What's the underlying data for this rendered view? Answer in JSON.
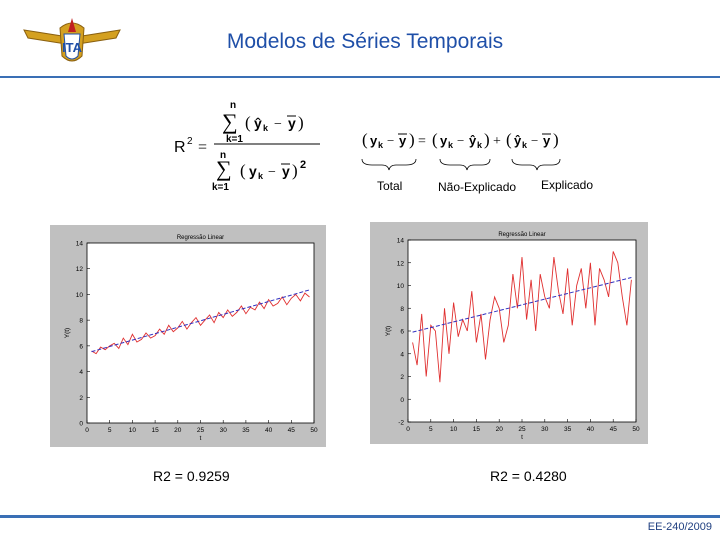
{
  "slide": {
    "title": "Modelos de Séries Temporais",
    "footer": "EE-240/2009"
  },
  "formula": {
    "brace_labels": [
      "Total",
      "Não-Explicado",
      "Explicado"
    ]
  },
  "r2_labels": {
    "left": "R2 = 0.9259",
    "right": "R2 = 0.4280"
  },
  "colors": {
    "title": "#1f4fa8",
    "rule": "#3a6fb5",
    "series": "#e03030",
    "fit": "#3030c0"
  },
  "chart_data": [
    {
      "type": "line",
      "title": "Regressão Linear",
      "xlabel": "t",
      "ylabel": "Y(t)",
      "xlim": [
        0,
        50
      ],
      "ylim": [
        0,
        14
      ],
      "xticks": [
        0,
        5,
        10,
        15,
        20,
        25,
        30,
        35,
        40,
        45,
        50
      ],
      "yticks": [
        0,
        2,
        4,
        6,
        8,
        10,
        12,
        14
      ],
      "x": [
        1,
        2,
        3,
        4,
        5,
        6,
        7,
        8,
        9,
        10,
        11,
        12,
        13,
        14,
        15,
        16,
        17,
        18,
        19,
        20,
        21,
        22,
        23,
        24,
        25,
        26,
        27,
        28,
        29,
        30,
        31,
        32,
        33,
        34,
        35,
        36,
        37,
        38,
        39,
        40,
        41,
        42,
        43,
        44,
        45,
        46,
        47,
        48,
        49
      ],
      "series": [
        {
          "values": [
            5.6,
            5.4,
            5.9,
            5.7,
            6.0,
            6.2,
            5.8,
            6.6,
            6.1,
            6.9,
            6.3,
            6.5,
            7.0,
            6.6,
            6.8,
            7.3,
            6.9,
            7.6,
            7.1,
            7.4,
            7.9,
            7.3,
            7.8,
            8.2,
            7.6,
            8.0,
            8.4,
            7.8,
            8.6,
            8.2,
            8.8,
            8.3,
            8.6,
            9.1,
            8.5,
            9.0,
            8.8,
            9.4,
            8.9,
            9.6,
            9.1,
            9.3,
            9.8,
            9.2,
            9.7,
            10.0,
            9.5,
            10.1,
            9.8
          ]
        },
        {
          "values": [
            5.55,
            5.65,
            5.75,
            5.85,
            5.95,
            6.05,
            6.15,
            6.25,
            6.35,
            6.45,
            6.55,
            6.65,
            6.75,
            6.85,
            6.95,
            7.05,
            7.15,
            7.25,
            7.35,
            7.45,
            7.55,
            7.65,
            7.75,
            7.85,
            7.95,
            8.05,
            8.15,
            8.25,
            8.35,
            8.45,
            8.55,
            8.65,
            8.75,
            8.85,
            8.95,
            9.05,
            9.15,
            9.25,
            9.35,
            9.45,
            9.55,
            9.65,
            9.75,
            9.85,
            9.95,
            10.05,
            10.15,
            10.25,
            10.35
          ]
        }
      ]
    },
    {
      "type": "line",
      "title": "Regressão Linear",
      "xlabel": "t",
      "ylabel": "Y(t)",
      "xlim": [
        0,
        50
      ],
      "ylim": [
        -2,
        14
      ],
      "xticks": [
        0,
        5,
        10,
        15,
        20,
        25,
        30,
        35,
        40,
        45,
        50
      ],
      "yticks": [
        -2,
        0,
        2,
        4,
        6,
        8,
        10,
        12,
        14
      ],
      "x": [
        1,
        2,
        3,
        4,
        5,
        6,
        7,
        8,
        9,
        10,
        11,
        12,
        13,
        14,
        15,
        16,
        17,
        18,
        19,
        20,
        21,
        22,
        23,
        24,
        25,
        26,
        27,
        28,
        29,
        30,
        31,
        32,
        33,
        34,
        35,
        36,
        37,
        38,
        39,
        40,
        41,
        42,
        43,
        44,
        45,
        46,
        47,
        48,
        49
      ],
      "series": [
        {
          "values": [
            5.0,
            3.0,
            7.5,
            2.0,
            6.5,
            6.0,
            1.5,
            8.0,
            4.0,
            8.5,
            5.5,
            7.0,
            6.0,
            9.5,
            5.0,
            7.5,
            3.5,
            7.0,
            9.0,
            8.0,
            5.0,
            6.5,
            11.0,
            8.0,
            12.5,
            7.0,
            10.5,
            6.0,
            11.0,
            9.0,
            8.0,
            12.5,
            9.5,
            7.5,
            11.5,
            6.5,
            10.0,
            11.5,
            8.0,
            12.0,
            6.5,
            11.5,
            10.5,
            9.0,
            13.0,
            12.0,
            9.0,
            6.5,
            10.5
          ]
        },
        {
          "values": [
            5.9,
            6.0,
            6.1,
            6.2,
            6.3,
            6.4,
            6.5,
            6.6,
            6.7,
            6.8,
            6.9,
            7.0,
            7.1,
            7.2,
            7.3,
            7.4,
            7.5,
            7.6,
            7.7,
            7.8,
            7.9,
            8.0,
            8.1,
            8.2,
            8.3,
            8.4,
            8.5,
            8.6,
            8.7,
            8.8,
            8.9,
            9.0,
            9.1,
            9.2,
            9.3,
            9.4,
            9.5,
            9.6,
            9.7,
            9.8,
            9.9,
            10.0,
            10.1,
            10.2,
            10.3,
            10.4,
            10.5,
            10.6,
            10.7
          ]
        }
      ]
    }
  ]
}
